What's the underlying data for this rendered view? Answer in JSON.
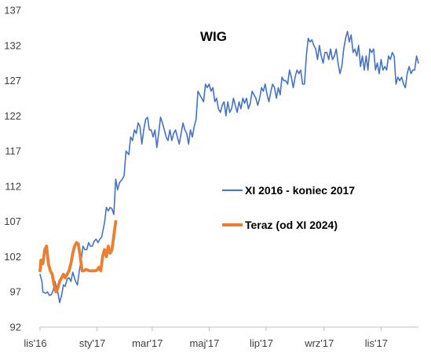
{
  "chart_data": {
    "type": "line",
    "title": "WIG",
    "xlabel": "",
    "ylabel": "",
    "ylim": [
      92,
      137
    ],
    "yticks": [
      92,
      97,
      102,
      107,
      112,
      117,
      122,
      127,
      132,
      137
    ],
    "xlim": [
      0,
      405
    ],
    "xticks": [
      {
        "label": "lis'16",
        "x": 0
      },
      {
        "label": "sty'17",
        "x": 61
      },
      {
        "label": "mar'17",
        "x": 120
      },
      {
        "label": "maj'17",
        "x": 181
      },
      {
        "label": "lip'17",
        "x": 242
      },
      {
        "label": "wrz'17",
        "x": 304
      },
      {
        "label": "lis'17",
        "x": 365
      }
    ],
    "grid": false,
    "legend_position": "right",
    "series": [
      {
        "name": "XI 2016 - koniec 2017",
        "color": "#4472C4",
        "x": [
          0,
          2,
          3,
          6,
          8,
          10,
          12,
          14,
          16,
          19,
          21,
          23,
          25,
          27,
          29,
          31,
          33,
          35,
          38,
          40,
          42,
          44,
          46,
          48,
          50,
          52,
          54,
          56,
          58,
          60,
          62,
          64,
          66,
          69,
          71,
          73,
          75,
          77,
          79,
          81,
          83,
          85,
          88,
          90,
          92,
          95,
          97,
          99,
          101,
          103,
          105,
          107,
          109,
          111,
          113,
          115,
          117,
          119,
          121,
          123,
          125,
          127,
          129,
          131,
          133,
          135,
          137,
          139,
          141,
          143,
          145,
          147,
          149,
          151,
          153,
          155,
          157,
          159,
          161,
          163,
          165,
          167,
          169,
          171,
          173,
          175,
          177,
          179,
          181,
          183,
          185,
          187,
          189,
          191,
          193,
          195,
          197,
          199,
          201,
          203,
          205,
          207,
          209,
          211,
          213,
          215,
          217,
          219,
          221,
          223,
          225,
          227,
          229,
          231,
          233,
          235,
          237,
          239,
          241,
          243,
          245,
          247,
          249,
          251,
          253,
          255,
          257,
          259,
          261,
          263,
          265,
          267,
          269,
          271,
          273,
          275,
          277,
          279,
          281,
          283,
          285,
          287,
          289,
          291,
          293,
          295,
          297,
          299,
          301,
          303,
          305,
          307,
          309,
          311,
          313,
          315,
          317,
          319,
          321,
          323,
          325,
          327,
          329,
          331,
          333,
          335,
          337,
          339,
          341,
          343,
          345,
          347,
          349,
          351,
          353,
          355,
          357,
          359,
          361,
          363,
          365,
          367,
          369,
          371,
          373,
          375,
          377,
          379,
          381,
          383,
          385,
          387,
          389,
          391,
          393,
          395,
          397,
          399,
          401,
          403,
          405
        ],
        "values": [
          99.5,
          98.5,
          97.0,
          96.8,
          97.0,
          96.5,
          96.6,
          97.2,
          98.5,
          97.0,
          95.5,
          96.5,
          98.0,
          97.8,
          98.8,
          99.0,
          98.5,
          99.8,
          98.5,
          98.0,
          100.0,
          101.5,
          103.5,
          103.0,
          103.0,
          104.0,
          103.5,
          103.5,
          104.2,
          104.5,
          104.0,
          104.5,
          104.8,
          106.8,
          109.0,
          108.5,
          109.0,
          108.8,
          108.0,
          113.0,
          111.5,
          112.5,
          113.0,
          113.5,
          117.0,
          116.5,
          119.0,
          118.5,
          120.0,
          119.5,
          121.0,
          120.5,
          118.0,
          120.0,
          121.5,
          121.8,
          120.0,
          120.0,
          119.0,
          120.0,
          117.5,
          119.5,
          121.8,
          121.0,
          120.0,
          119.0,
          118.5,
          120.0,
          118.5,
          119.5,
          120.0,
          119.0,
          118.0,
          119.5,
          121.0,
          120.0,
          119.5,
          118.0,
          120.0,
          119.0,
          120.5,
          121.5,
          125.5,
          125.0,
          124.5,
          124.0,
          126.5,
          126.0,
          126.5,
          125.5,
          126.0,
          124.0,
          124.5,
          123.0,
          122.5,
          123.5,
          124.0,
          122.0,
          124.0,
          122.5,
          123.0,
          124.5,
          123.5,
          122.5,
          124.0,
          123.0,
          124.5,
          123.8,
          124.5,
          123.0,
          123.8,
          125.5,
          125.0,
          124.5,
          123.5,
          124.5,
          126.0,
          125.5,
          126.5,
          125.0,
          124.0,
          125.5,
          126.5,
          126.0,
          124.5,
          126.0,
          125.0,
          127.5,
          127.0,
          127.0,
          126.5,
          128.5,
          127.5,
          126.0,
          127.5,
          128.5,
          128.0,
          128.5,
          126.5,
          126.5,
          130.5,
          133.0,
          132.5,
          132.8,
          132.0,
          131.5,
          130.0,
          132.0,
          130.5,
          129.5,
          131.0,
          131.0,
          130.0,
          131.5,
          130.0,
          130.5,
          131.5,
          129.5,
          128.0,
          129.0,
          131.5,
          133.0,
          134.0,
          132.5,
          133.5,
          131.0,
          131.5,
          130.5,
          132.0,
          129.0,
          130.5,
          128.5,
          130.5,
          128.5,
          131.5,
          131.0,
          131.5,
          128.5,
          129.5,
          128.0,
          130.0,
          128.5,
          129.0,
          128.5,
          130.5,
          130.0,
          131.0,
          130.5,
          126.5,
          127.5,
          127.0,
          127.5,
          126.5,
          126.0,
          128.0,
          129.0,
          128.0,
          128.5,
          128.5,
          130.5,
          129.5
        ]
      },
      {
        "name": "Teraz (od XI 2024)",
        "color": "#ED7D31",
        "x": [
          0,
          1,
          3,
          5,
          7,
          9,
          11,
          13,
          15,
          17,
          19,
          21,
          23,
          25,
          27,
          29,
          31,
          33,
          35,
          37,
          39,
          41,
          43,
          45,
          47,
          49,
          51,
          53,
          55,
          57,
          59,
          61,
          63,
          65,
          67,
          69,
          71,
          73,
          75,
          77,
          79,
          81
        ],
        "values": [
          100.0,
          101.5,
          101.0,
          103.0,
          103.5,
          101.0,
          100.0,
          99.5,
          98.0,
          97.0,
          97.5,
          98.5,
          99.0,
          99.5,
          99.0,
          99.5,
          100.0,
          101.0,
          102.5,
          103.5,
          104.0,
          103.8,
          102.0,
          100.0,
          100.0,
          100.2,
          100.1,
          100.0,
          100.0,
          100.0,
          100.0,
          100.1,
          100.5,
          100.0,
          102.0,
          103.0,
          102.0,
          103.5,
          102.5,
          103.0,
          105.0,
          107.0
        ]
      }
    ]
  }
}
